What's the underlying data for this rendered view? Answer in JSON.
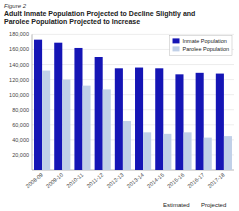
{
  "chart_data": {
    "type": "bar",
    "title": "Adult Inmate Population Projected to Decline Slightly and\nParolee Population Projected to Increase",
    "annotations": [
      "Figure 2",
      "Estimated",
      "Projected"
    ],
    "categories": [
      "2008-09",
      "2009-10",
      "2010-11",
      "2011-12",
      "2012-13",
      "2013-14",
      "2014-15",
      "2015-16",
      "2016-17",
      "2017-18"
    ],
    "series": [
      {
        "name": "Inmate Population",
        "color": "#1515b5",
        "values": [
          173000,
          169000,
          162000,
          150000,
          135000,
          136000,
          135000,
          127000,
          129000,
          128000
        ]
      },
      {
        "name": "Parolee Population",
        "color": "#c0d0e8",
        "values": [
          132000,
          120000,
          112000,
          107000,
          65000,
          50000,
          48000,
          50000,
          43000,
          45000
        ]
      }
    ],
    "ylim": [
      0,
      180000
    ],
    "yticks": [
      {
        "value": 20000,
        "label": "20,000"
      },
      {
        "value": 40000,
        "label": "40,000"
      },
      {
        "value": 60000,
        "label": "60,000"
      },
      {
        "value": 80000,
        "label": "80,000"
      },
      {
        "value": 100000,
        "label": "100,000"
      },
      {
        "value": 120000,
        "label": "120,000"
      },
      {
        "value": 140000,
        "label": "140,000"
      },
      {
        "value": 160000,
        "label": "160,000"
      },
      {
        "value": 180000,
        "label": "180,000"
      }
    ],
    "grid": true,
    "legend": "upper right"
  }
}
